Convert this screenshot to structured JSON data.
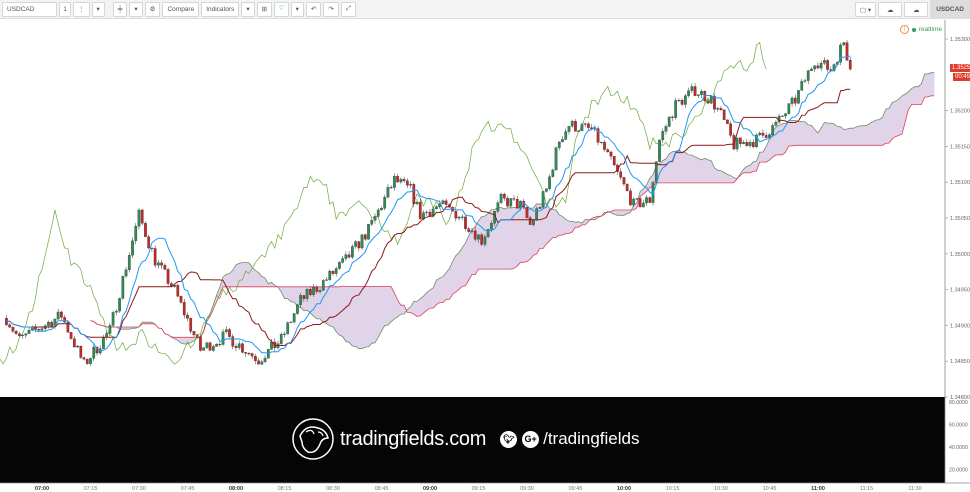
{
  "toolbar": {
    "symbol": "USDCAD",
    "interval": "1",
    "compare": "Compare",
    "indicators": "Indicators",
    "right_tab": "USDCAD",
    "icons": [
      "more-vertical-icon",
      "chevron-down-icon",
      "candlestick-icon",
      "gear-icon",
      "add-alert-icon",
      "lightbulb-icon",
      "undo-icon",
      "redo-icon",
      "fullscreen-icon",
      "square-icon",
      "cloud-download-icon",
      "cloud-upload-icon"
    ]
  },
  "status": {
    "realtime": "realtime"
  },
  "price_label": {
    "price": "1.35258",
    "countdown": "00:49"
  },
  "banner": {
    "site": "tradingfields.com",
    "handle": "/tradingfields",
    "twitter": "t",
    "gplus": "G+"
  },
  "colors": {
    "up": "#2e8b57",
    "down": "#c62828",
    "tenkan": "#2196f3",
    "kijun": "#8b1a1a",
    "chikou": "#6aaa3a",
    "span_a": "#6b8e6b",
    "span_b": "#e0405a",
    "cloud": "#dccbe4"
  },
  "chart_data": {
    "type": "candlestick",
    "indicator": "Ichimoku",
    "y_ticks": [
      "1.35300",
      "1.35250",
      "1.35200",
      "1.35150",
      "1.35100",
      "1.35050",
      "1.35000",
      "1.34950",
      "1.34900",
      "1.34850",
      "1.34800"
    ],
    "ylim": [
      1.348,
      1.353
    ],
    "x_ticks": [
      "07:00",
      "07:15",
      "07:30",
      "07:45",
      "08:00",
      "08:15",
      "08:30",
      "08:45",
      "09:00",
      "09:15",
      "09:30",
      "09:45",
      "10:00",
      "10:15",
      "10:30",
      "10:45",
      "11:00",
      "11:15",
      "11:30"
    ],
    "lower_ticks": [
      "80.0000",
      "60.0000",
      "40.0000",
      "20.0000"
    ],
    "approx_close_path": [
      [
        "06:49",
        1.3491
      ],
      [
        "06:53",
        1.3488
      ],
      [
        "07:06",
        1.34914
      ],
      [
        "07:13",
        1.34845
      ],
      [
        "07:21",
        1.34893
      ],
      [
        "07:30",
        1.35054
      ],
      [
        "07:35",
        1.34991
      ],
      [
        "07:41",
        1.34949
      ],
      [
        "07:49",
        1.34866
      ],
      [
        "07:57",
        1.34886
      ],
      [
        "08:07",
        1.34852
      ],
      [
        "08:14",
        1.3488
      ],
      [
        "08:20",
        1.34935
      ],
      [
        "08:26",
        1.34956
      ],
      [
        "08:34",
        1.34991
      ],
      [
        "08:41",
        1.35033
      ],
      [
        "08:49",
        1.35103
      ],
      [
        "08:54",
        1.35089
      ],
      [
        "08:57",
        1.35054
      ],
      [
        "09:03",
        1.35068
      ],
      [
        "09:09",
        1.35054
      ],
      [
        "09:16",
        1.35019
      ],
      [
        "09:22",
        1.35075
      ],
      [
        "09:28",
        1.35068
      ],
      [
        "09:31",
        1.3504
      ],
      [
        "09:36",
        1.35089
      ],
      [
        "09:40",
        1.35159
      ],
      [
        "09:43",
        1.3518
      ],
      [
        "09:50",
        1.35173
      ],
      [
        "09:54",
        1.35145
      ],
      [
        "09:59",
        1.35103
      ],
      [
        "10:03",
        1.35068
      ],
      [
        "10:08",
        1.35075
      ],
      [
        "10:11",
        1.35159
      ],
      [
        "10:16",
        1.35208
      ],
      [
        "10:22",
        1.35229
      ],
      [
        "10:27",
        1.35215
      ],
      [
        "10:30",
        1.35194
      ],
      [
        "10:34",
        1.35152
      ],
      [
        "10:41",
        1.35159
      ],
      [
        "10:47",
        1.3518
      ],
      [
        "10:53",
        1.35215
      ],
      [
        "10:59",
        1.35271
      ],
      [
        "11:04",
        1.35257
      ],
      [
        "11:08",
        1.35296
      ],
      [
        "11:10",
        1.35258
      ]
    ]
  }
}
